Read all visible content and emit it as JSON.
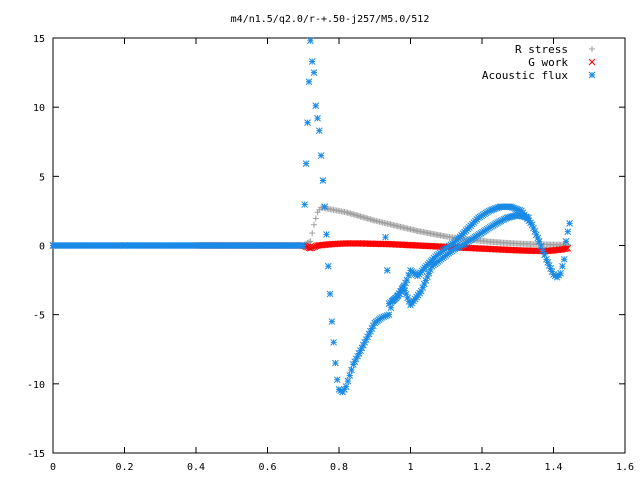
{
  "chart_data": {
    "type": "scatter",
    "title": "m4/n1.5/q2.0/r-+.50-j257/M5.0/512",
    "xlabel": "",
    "ylabel": "",
    "xlim": [
      0,
      1.6
    ],
    "ylim": [
      -15,
      15
    ],
    "x_ticks": [
      "0",
      "0.2",
      "0.4",
      "0.6",
      "0.8",
      "1",
      "1.2",
      "1.4",
      "1.6"
    ],
    "y_ticks": [
      "-15",
      "-10",
      "-5",
      "0",
      "5",
      "10",
      "15"
    ],
    "legend_position": "top-right",
    "series": [
      {
        "name": "R stress",
        "marker": "+",
        "color": "#a0a0a0",
        "points": [
          [
            0.0,
            0
          ],
          [
            0.1,
            0
          ],
          [
            0.2,
            0
          ],
          [
            0.3,
            0
          ],
          [
            0.4,
            0
          ],
          [
            0.5,
            0
          ],
          [
            0.6,
            0
          ],
          [
            0.7,
            0
          ],
          [
            0.72,
            0.3
          ],
          [
            0.73,
            1.5
          ],
          [
            0.74,
            2.4
          ],
          [
            0.75,
            2.75
          ],
          [
            0.78,
            2.6
          ],
          [
            0.82,
            2.4
          ],
          [
            0.86,
            2.1
          ],
          [
            0.9,
            1.8
          ],
          [
            0.94,
            1.55
          ],
          [
            0.98,
            1.3
          ],
          [
            1.02,
            1.05
          ],
          [
            1.06,
            0.85
          ],
          [
            1.1,
            0.65
          ],
          [
            1.14,
            0.5
          ],
          [
            1.18,
            0.38
          ],
          [
            1.22,
            0.28
          ],
          [
            1.26,
            0.2
          ],
          [
            1.3,
            0.14
          ],
          [
            1.34,
            0.1
          ],
          [
            1.38,
            0.07
          ],
          [
            1.42,
            0.05
          ],
          [
            1.44,
            0.05
          ]
        ]
      },
      {
        "name": "G work",
        "marker": "x",
        "color": "#ff0000",
        "points": [
          [
            0.0,
            0
          ],
          [
            0.2,
            0
          ],
          [
            0.4,
            0
          ],
          [
            0.6,
            0
          ],
          [
            0.7,
            0
          ],
          [
            0.72,
            -0.2
          ],
          [
            0.74,
            0
          ],
          [
            0.78,
            0.1
          ],
          [
            0.82,
            0.15
          ],
          [
            0.86,
            0.15
          ],
          [
            0.9,
            0.12
          ],
          [
            0.94,
            0.1
          ],
          [
            0.98,
            0.05
          ],
          [
            1.02,
            0.0
          ],
          [
            1.06,
            -0.05
          ],
          [
            1.1,
            -0.1
          ],
          [
            1.14,
            -0.15
          ],
          [
            1.18,
            -0.2
          ],
          [
            1.22,
            -0.25
          ],
          [
            1.26,
            -0.3
          ],
          [
            1.3,
            -0.35
          ],
          [
            1.34,
            -0.38
          ],
          [
            1.38,
            -0.4
          ],
          [
            1.42,
            -0.3
          ],
          [
            1.44,
            -0.2
          ]
        ]
      },
      {
        "name": "Acoustic flux",
        "marker": "*",
        "color": "#1a8ae6",
        "points": [
          [
            0.0,
            0
          ],
          [
            0.05,
            0
          ],
          [
            0.1,
            0
          ],
          [
            0.15,
            0
          ],
          [
            0.2,
            0
          ],
          [
            0.25,
            0
          ],
          [
            0.3,
            0
          ],
          [
            0.35,
            0
          ],
          [
            0.4,
            0
          ],
          [
            0.45,
            0
          ],
          [
            0.5,
            0
          ],
          [
            0.55,
            0
          ],
          [
            0.6,
            0
          ],
          [
            0.65,
            0
          ],
          [
            0.7,
            0
          ],
          [
            0.72,
            14.8
          ],
          [
            0.725,
            13.3
          ],
          [
            0.73,
            12.5
          ],
          [
            0.735,
            10.1
          ],
          [
            0.745,
            8.3
          ],
          [
            0.75,
            6.5
          ],
          [
            0.755,
            4.7
          ],
          [
            0.76,
            2.8
          ],
          [
            0.765,
            0.8
          ],
          [
            0.77,
            -1.5
          ],
          [
            0.775,
            -3.5
          ],
          [
            0.78,
            -5.5
          ],
          [
            0.785,
            -7.0
          ],
          [
            0.79,
            -8.5
          ],
          [
            0.795,
            -9.7
          ],
          [
            0.8,
            -10.4
          ],
          [
            0.81,
            -10.6
          ],
          [
            0.82,
            -10.2
          ],
          [
            0.83,
            -9.4
          ],
          [
            0.84,
            -8.6
          ],
          [
            0.86,
            -7.6
          ],
          [
            0.88,
            -6.6
          ],
          [
            0.9,
            -5.6
          ],
          [
            0.92,
            -5.2
          ],
          [
            0.94,
            -5.0
          ],
          [
            0.95,
            -4.0
          ],
          [
            0.97,
            -3.5
          ],
          [
            0.99,
            -2.5
          ],
          [
            1.0,
            -1.8
          ],
          [
            1.02,
            -2.2
          ],
          [
            1.04,
            -1.6
          ],
          [
            1.07,
            -0.8
          ],
          [
            1.1,
            -0.2
          ],
          [
            1.13,
            0.4
          ],
          [
            1.16,
            1.2
          ],
          [
            1.19,
            2.0
          ],
          [
            1.22,
            2.5
          ],
          [
            1.25,
            2.8
          ],
          [
            1.28,
            2.8
          ],
          [
            1.31,
            2.5
          ],
          [
            1.34,
            1.5
          ],
          [
            1.36,
            0.3
          ],
          [
            1.38,
            -1.0
          ],
          [
            1.4,
            -2.1
          ],
          [
            1.41,
            -2.3
          ],
          [
            1.42,
            -2.0
          ],
          [
            1.43,
            -1.0
          ],
          [
            1.435,
            0.3
          ],
          [
            1.44,
            1.0
          ],
          [
            1.445,
            1.6
          ],
          [
            0.93,
            0.6
          ],
          [
            0.94,
            -4.2
          ],
          [
            0.96,
            -3.8
          ],
          [
            0.98,
            -3.0
          ],
          [
            1.0,
            -4.3
          ],
          [
            1.03,
            -3.3
          ],
          [
            1.06,
            -1.5
          ],
          [
            1.09,
            -0.9
          ],
          [
            1.12,
            -0.3
          ],
          [
            1.15,
            0.1
          ],
          [
            1.18,
            0.6
          ],
          [
            1.21,
            1.1
          ],
          [
            1.24,
            1.6
          ],
          [
            1.27,
            2.0
          ],
          [
            1.3,
            2.2
          ],
          [
            1.33,
            2.0
          ]
        ]
      }
    ]
  }
}
